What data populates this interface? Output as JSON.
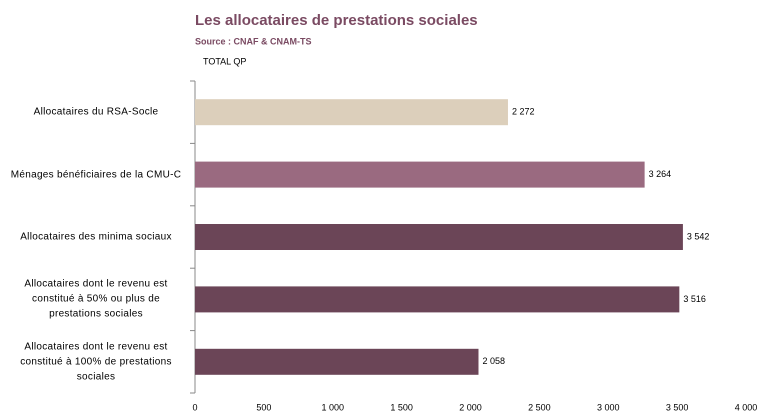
{
  "chart_data": {
    "type": "hbar",
    "title": "Les allocataires de prestations sociales",
    "subtitle": "Source : CNAF & CNAM-TS",
    "series_label": "TOTAL QP",
    "categories": [
      "Allocataires du RSA-Socle",
      "Ménages bénéficiaires de la CMU-C",
      "Allocataires des minima sociaux",
      "Allocataires dont le revenu est constitué à 50% ou plus de prestations sociales",
      "Allocataires dont le revenu est constitué à 100% de prestations sociales"
    ],
    "values": [
      2272,
      3264,
      3542,
      3516,
      2058
    ],
    "value_labels": [
      "2 272",
      "3 264",
      "3 542",
      "3 516",
      "2 058"
    ],
    "colors": [
      "#dccfbb",
      "#9a6a80",
      "#6b4557",
      "#6b4557",
      "#6b4557"
    ],
    "xlim": [
      0,
      4000
    ],
    "xticks": [
      0,
      500,
      {
        "value": 1000,
        "label": "1 000"
      },
      {
        "value": 1500,
        "label": "1 500"
      },
      {
        "value": 2000,
        "label": "2 000"
      },
      {
        "value": 2500,
        "label": "2 500"
      },
      {
        "value": 3000,
        "label": "3 000"
      },
      {
        "value": 3500,
        "label": "3 500"
      },
      {
        "value": 4000,
        "label": "4 000"
      }
    ]
  }
}
